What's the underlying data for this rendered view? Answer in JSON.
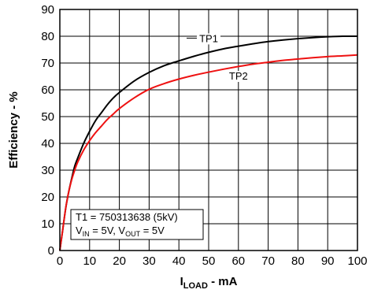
{
  "chart_data": {
    "type": "line",
    "title": "",
    "ylabel": "Efficiency - %",
    "xlabel": {
      "main": "I",
      "sub": "LOAD",
      "rest": " - mA"
    },
    "xlim": [
      0,
      100
    ],
    "ylim": [
      0,
      90
    ],
    "x_ticks": [
      0,
      10,
      20,
      30,
      40,
      50,
      60,
      70,
      80,
      90,
      100
    ],
    "y_ticks": [
      0,
      10,
      20,
      30,
      40,
      50,
      60,
      70,
      80,
      90
    ],
    "grid": true,
    "series": [
      {
        "name": "TP1",
        "color": "#000000",
        "x": [
          0,
          1,
          2,
          3,
          4,
          5,
          6,
          8,
          10,
          12,
          14,
          16,
          18,
          20,
          25,
          30,
          35,
          40,
          45,
          50,
          55,
          60,
          65,
          70,
          75,
          80,
          85,
          90,
          95,
          100
        ],
        "y": [
          0,
          8,
          16,
          22,
          27,
          31.5,
          34.5,
          40,
          44.5,
          48.5,
          51.5,
          54.5,
          57,
          59,
          63.3,
          66.5,
          69,
          70.8,
          72.5,
          74,
          75.3,
          76.3,
          77.2,
          78,
          78.6,
          79.1,
          79.5,
          79.8,
          80,
          80
        ]
      },
      {
        "name": "TP2",
        "color": "#ee1111",
        "x": [
          0,
          1,
          2,
          3,
          4,
          5,
          6,
          8,
          10,
          12,
          14,
          16,
          18,
          20,
          25,
          30,
          35,
          40,
          45,
          50,
          55,
          60,
          65,
          70,
          75,
          80,
          85,
          90,
          95,
          100
        ],
        "y": [
          0,
          8,
          16,
          22,
          26.5,
          30,
          33,
          37.5,
          41,
          44,
          46.5,
          49,
          51,
          53,
          57,
          60.2,
          62.3,
          64,
          65.4,
          66.6,
          67.7,
          68.7,
          69.6,
          70.3,
          71,
          71.5,
          72,
          72.4,
          72.7,
          73
        ]
      }
    ],
    "series_labels": [
      {
        "text": "TP1",
        "x": 50,
        "y": 79
      },
      {
        "text": "TP2",
        "x": 60,
        "y": 65
      }
    ],
    "annotation": {
      "line1": "T1 = 750313638 (5kV)",
      "line2": {
        "v": "V",
        "in_sub": "IN",
        "mid": " = 5V, V",
        "out_sub": "OUT",
        "end": " = 5V"
      }
    }
  }
}
